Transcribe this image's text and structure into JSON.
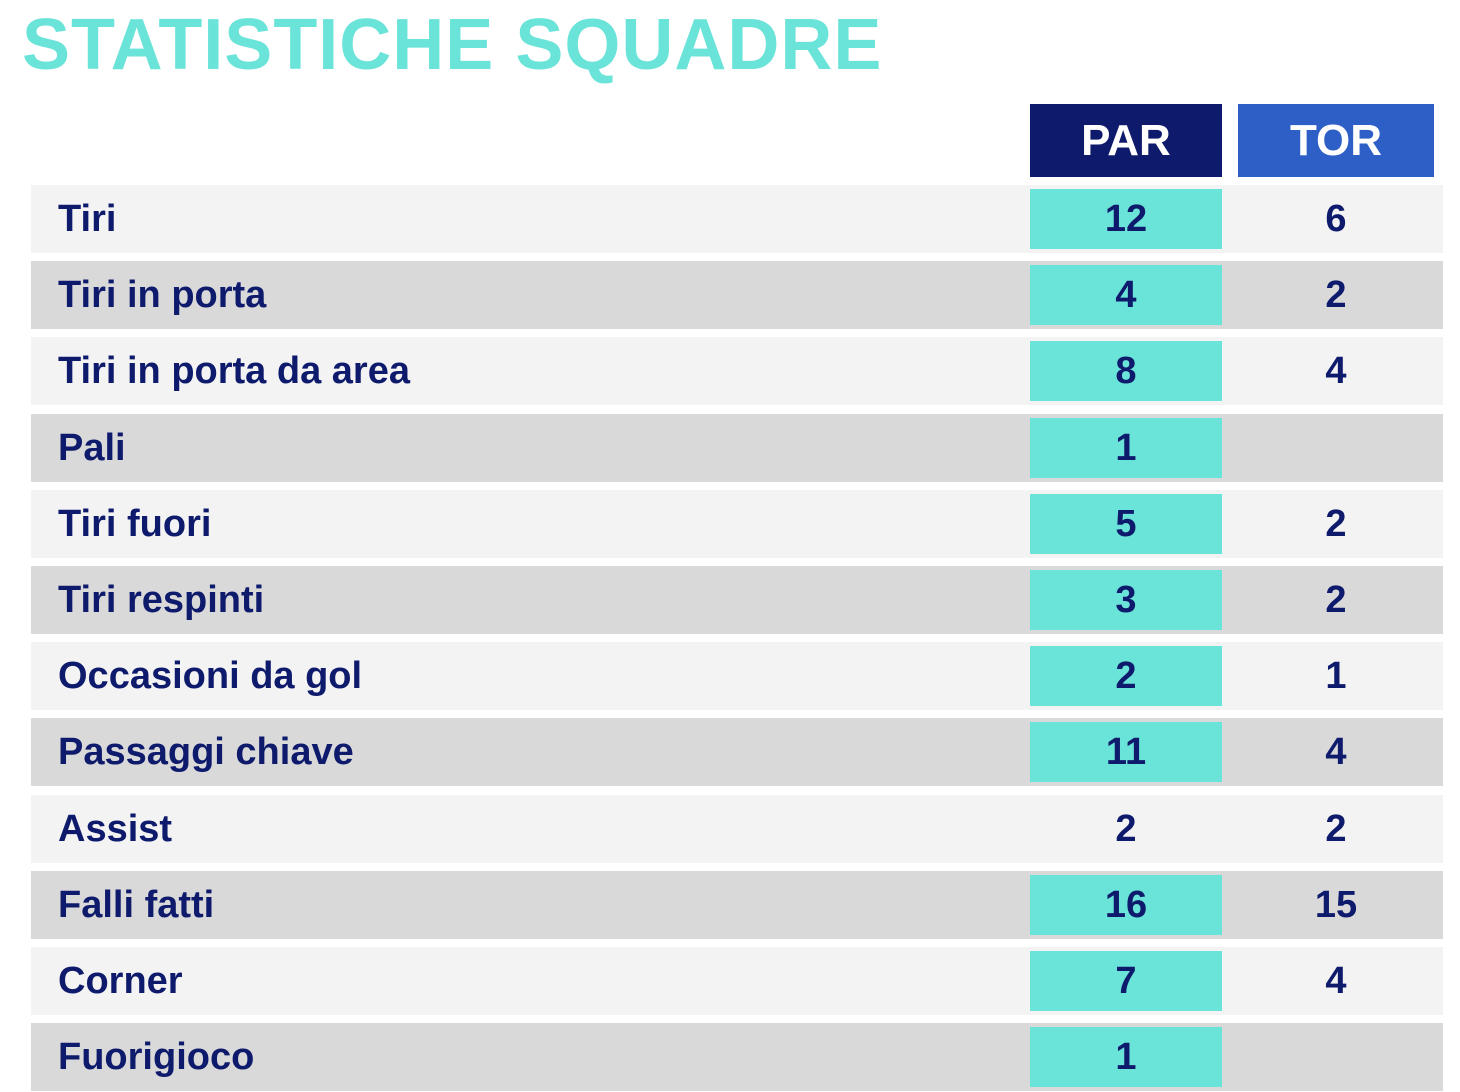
{
  "page": {
    "title": "STATISTICHE SQUADRE"
  },
  "colors": {
    "title": "#6ae3d9",
    "par_header": "#0e1a6b",
    "tor_header": "#2e5fc6",
    "highlight": "#6ae3d9",
    "text": "#0e1a6b",
    "row_light": "#f3f3f3",
    "row_dark": "#d9d9d9"
  },
  "chart_data": {
    "type": "table",
    "title": "STATISTICHE SQUADRE",
    "columns": [
      "PAR",
      "TOR"
    ],
    "rows": [
      {
        "label": "Tiri",
        "par": "12",
        "tor": "6",
        "par_highlighted": true
      },
      {
        "label": "Tiri in porta",
        "par": "4",
        "tor": "2",
        "par_highlighted": true
      },
      {
        "label": "Tiri in porta da area",
        "par": "8",
        "tor": "4",
        "par_highlighted": true
      },
      {
        "label": "Pali",
        "par": "1",
        "tor": "",
        "par_highlighted": true
      },
      {
        "label": "Tiri fuori",
        "par": "5",
        "tor": "2",
        "par_highlighted": true
      },
      {
        "label": "Tiri respinti",
        "par": "3",
        "tor": "2",
        "par_highlighted": true
      },
      {
        "label": "Occasioni da gol",
        "par": "2",
        "tor": "1",
        "par_highlighted": true
      },
      {
        "label": "Passaggi chiave",
        "par": "11",
        "tor": "4",
        "par_highlighted": true
      },
      {
        "label": "Assist",
        "par": "2",
        "tor": "2",
        "par_highlighted": false
      },
      {
        "label": "Falli fatti",
        "par": "16",
        "tor": "15",
        "par_highlighted": true
      },
      {
        "label": "Corner",
        "par": "7",
        "tor": "4",
        "par_highlighted": true
      },
      {
        "label": "Fuorigioco",
        "par": "1",
        "tor": "",
        "par_highlighted": true
      }
    ]
  }
}
